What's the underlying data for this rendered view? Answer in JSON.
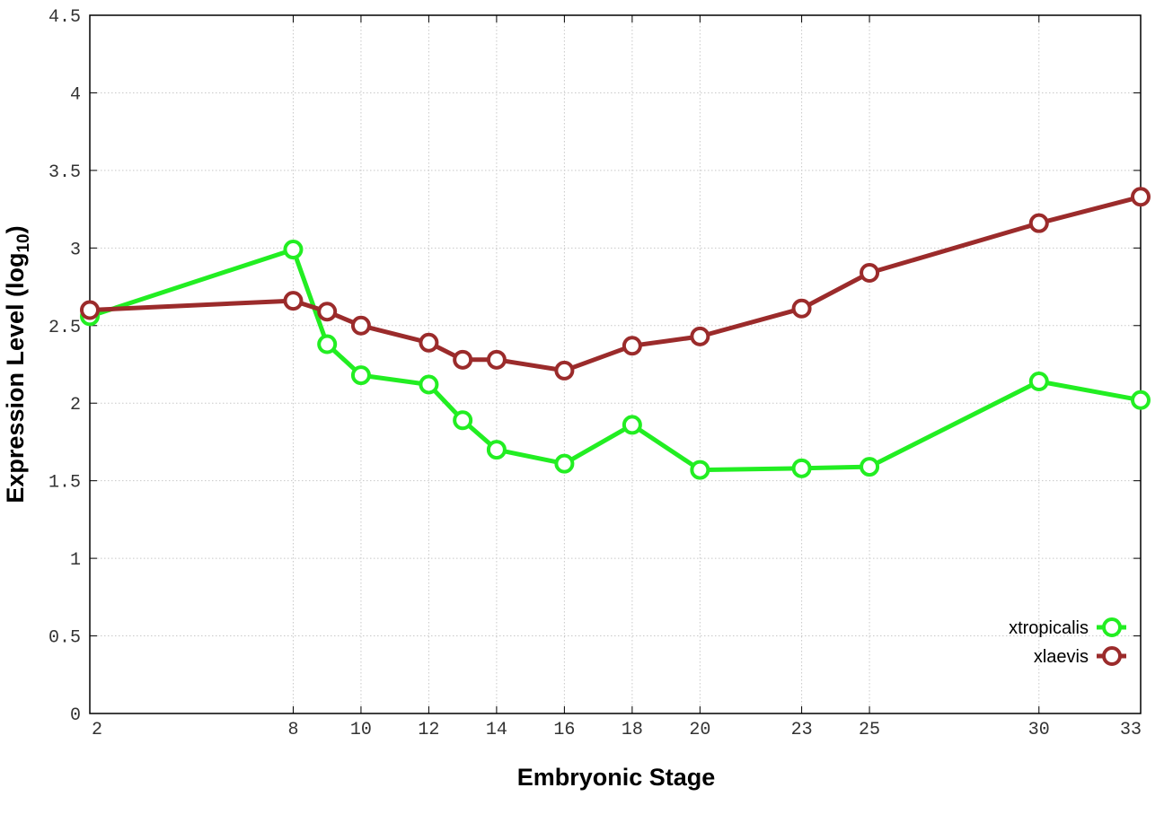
{
  "chart_data": {
    "type": "line",
    "title": "",
    "xlabel": "Embryonic Stage",
    "ylabel": "Expression Level (log",
    "ylabel_subscript": "10",
    "ylabel_suffix": ")",
    "xlim": [
      2,
      33
    ],
    "ylim": [
      0,
      4.5
    ],
    "x_ticks": [
      2,
      8,
      10,
      12,
      14,
      16,
      18,
      20,
      23,
      25,
      30,
      33
    ],
    "x_tick_labels": [
      "2",
      "8",
      "10",
      "12",
      "14",
      "16",
      "18",
      "20",
      "23",
      "25",
      "30",
      "33"
    ],
    "y_ticks": [
      0,
      0.5,
      1,
      1.5,
      2,
      2.5,
      3,
      3.5,
      4,
      4.5
    ],
    "y_tick_labels": [
      "0",
      "0.5",
      "1",
      "1.5",
      "2",
      "2.5",
      "3",
      "3.5",
      "4",
      "4.5"
    ],
    "grid": true,
    "legend_position": "bottom-right",
    "x": [
      2,
      8,
      9,
      10,
      12,
      13,
      14,
      16,
      18,
      20,
      23,
      25,
      30,
      33
    ],
    "series": [
      {
        "name": "xtropicalis",
        "color": "#22ee22",
        "values": [
          2.56,
          2.99,
          2.38,
          2.18,
          2.12,
          1.89,
          1.7,
          1.61,
          1.86,
          1.57,
          1.58,
          1.59,
          2.14,
          2.02
        ]
      },
      {
        "name": "xlaevis",
        "color": "#9b2b2b",
        "values": [
          2.6,
          2.66,
          2.59,
          2.5,
          2.39,
          2.28,
          2.28,
          2.21,
          2.37,
          2.43,
          2.61,
          2.84,
          3.16,
          3.33
        ]
      }
    ]
  }
}
